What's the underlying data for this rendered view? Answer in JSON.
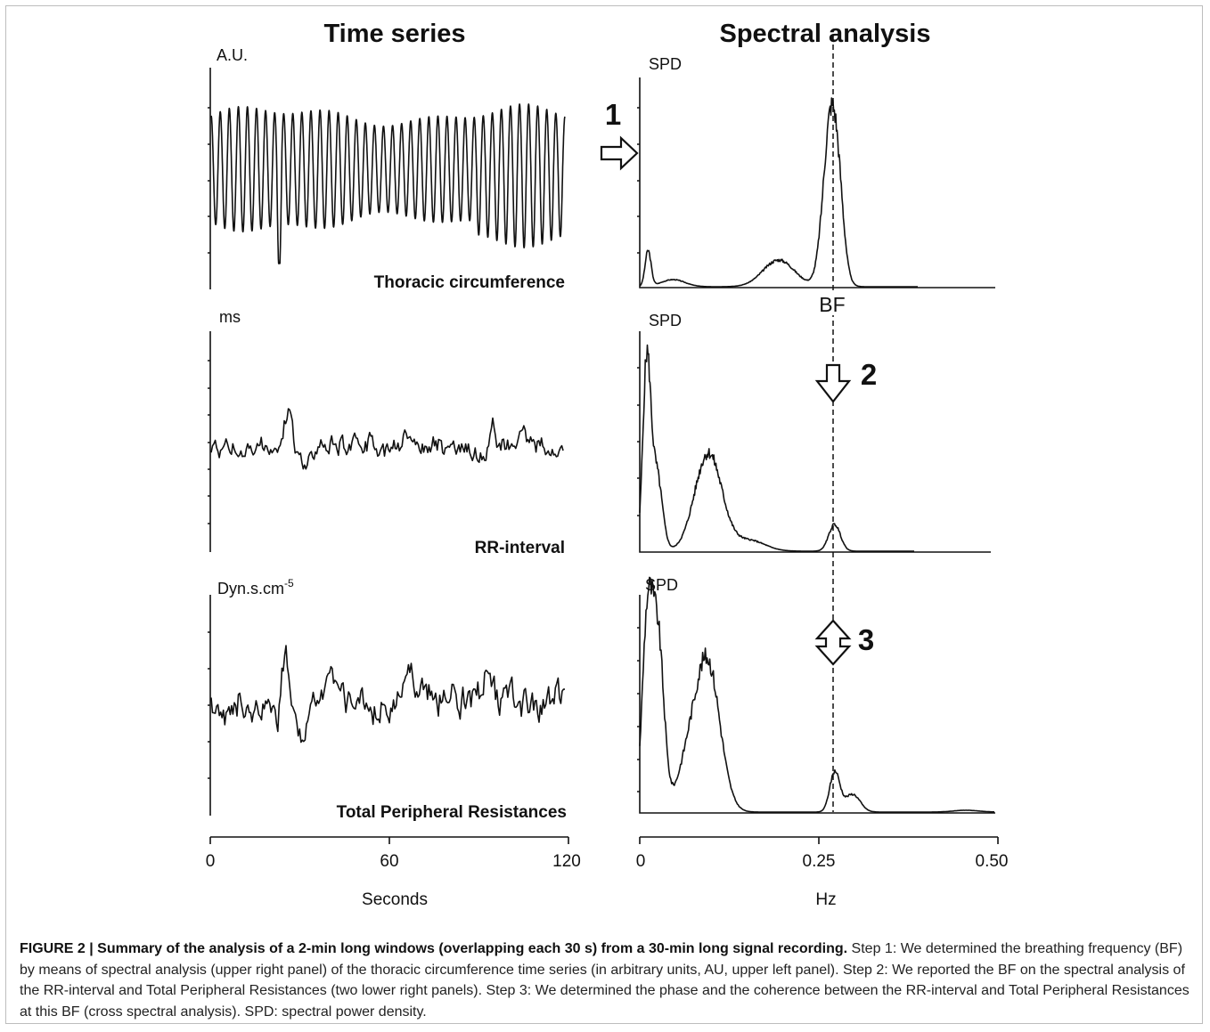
{
  "figure": {
    "left_title": "Time series",
    "right_title": "Spectral analysis",
    "left_panels": [
      {
        "unit": "A.U.",
        "unit_sup": "",
        "name": "Thoracic circumference"
      },
      {
        "unit": "ms",
        "unit_sup": "",
        "name": "RR-interval"
      },
      {
        "unit": "Dyn.s.cm",
        "unit_sup": "-5",
        "name": "Total Peripheral Resistances"
      }
    ],
    "right_panels": [
      {
        "unit": "SPD"
      },
      {
        "unit": "SPD"
      },
      {
        "unit": "SPD"
      }
    ],
    "x_time": {
      "ticks": [
        "0",
        "60",
        "120"
      ],
      "label": "Seconds",
      "range": [
        0,
        120
      ]
    },
    "x_freq": {
      "ticks": [
        "0",
        "0.25",
        "0.50"
      ],
      "label": "Hz",
      "range": [
        0,
        0.5
      ]
    },
    "bf_label": "BF",
    "bf_value": 0.27,
    "steps": [
      "1",
      "2",
      "3"
    ]
  },
  "caption": {
    "label": "FIGURE 2 | Summary of the analysis of a 2-min long windows (overlapping each 30 s) from a 30-min long signal recording.",
    "text": " Step 1: We determined the breathing frequency (BF) by means of spectral analysis (upper right panel) of the thoracic circumference time series (in arbitrary units, AU, upper left panel). Step 2: We reported the BF on the spectral analysis of the RR-interval and Total Peripheral Resistances (two lower right panels). Step 3: We determined the phase and the coherence between the RR-interval and Total Peripheral Resistances at this BF (cross spectral analysis). SPD: spectral power density."
  }
}
